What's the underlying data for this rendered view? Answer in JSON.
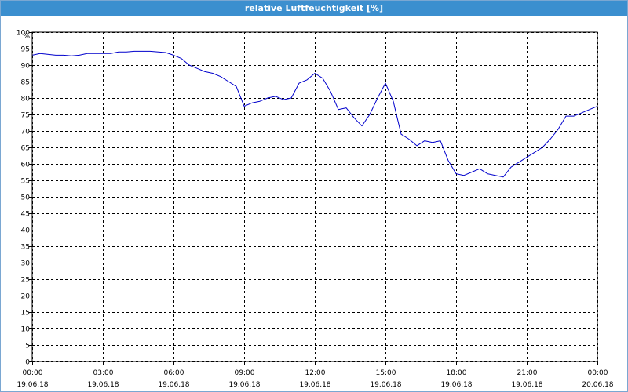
{
  "window": {
    "title": "relative Luftfeuchtigkeit [%]"
  },
  "chart_data": {
    "type": "line",
    "title": "relative Luftfeuchtigkeit [%]",
    "ylabel": "%",
    "xlabel": "",
    "ylim": [
      0,
      100
    ],
    "y_ticks": [
      0,
      5,
      10,
      15,
      20,
      25,
      30,
      35,
      40,
      45,
      50,
      55,
      60,
      65,
      70,
      75,
      80,
      85,
      90,
      95,
      100
    ],
    "xlim": [
      "19.06.18 00:00",
      "20.06.18 00:00"
    ],
    "x_ticks": [
      {
        "time": "00:00",
        "date": "19.06.18"
      },
      {
        "time": "03:00",
        "date": "19.06.18"
      },
      {
        "time": "06:00",
        "date": "19.06.18"
      },
      {
        "time": "09:00",
        "date": "19.06.18"
      },
      {
        "time": "12:00",
        "date": "19.06.18"
      },
      {
        "time": "15:00",
        "date": "19.06.18"
      },
      {
        "time": "18:00",
        "date": "19.06.18"
      },
      {
        "time": "21:00",
        "date": "19.06.18"
      },
      {
        "time": "00:00",
        "date": "20.06.18"
      }
    ],
    "grid": true,
    "line_color": "#0000cc",
    "series": [
      {
        "points": [
          [
            "19.06.18 00:00",
            93
          ],
          [
            "19.06.18 00:20",
            93.5
          ],
          [
            "19.06.18 01:00",
            93
          ],
          [
            "19.06.18 01:20",
            93
          ],
          [
            "19.06.18 01:40",
            92.8
          ],
          [
            "19.06.18 02:00",
            93
          ],
          [
            "19.06.18 02:20",
            93.5
          ],
          [
            "19.06.18 02:40",
            93.5
          ],
          [
            "19.06.18 03:00",
            93.5
          ],
          [
            "19.06.18 03:20",
            93.5
          ],
          [
            "19.06.18 03:40",
            94
          ],
          [
            "19.06.18 04:00",
            94
          ],
          [
            "19.06.18 04:20",
            94.2
          ],
          [
            "19.06.18 05:00",
            94.2
          ],
          [
            "19.06.18 05:40",
            93.8
          ],
          [
            "19.06.18 06:00",
            93
          ],
          [
            "19.06.18 06:20",
            92
          ],
          [
            "19.06.18 06:40",
            90
          ],
          [
            "19.06.18 07:00",
            89
          ],
          [
            "19.06.18 07:20",
            88
          ],
          [
            "19.06.18 07:40",
            87.5
          ],
          [
            "19.06.18 08:00",
            86.5
          ],
          [
            "19.06.18 08:20",
            85
          ],
          [
            "19.06.18 08:40",
            83.5
          ],
          [
            "19.06.18 09:00",
            77.5
          ],
          [
            "19.06.18 09:20",
            78.5
          ],
          [
            "19.06.18 09:40",
            79
          ],
          [
            "19.06.18 10:00",
            80
          ],
          [
            "19.06.18 10:20",
            80.5
          ],
          [
            "19.06.18 10:40",
            79.5
          ],
          [
            "19.06.18 11:00",
            80
          ],
          [
            "19.06.18 11:20",
            84.5
          ],
          [
            "19.06.18 11:40",
            85.5
          ],
          [
            "19.06.18 12:00",
            87.5
          ],
          [
            "19.06.18 12:20",
            86
          ],
          [
            "19.06.18 12:40",
            82
          ],
          [
            "19.06.18 13:00",
            76.5
          ],
          [
            "19.06.18 13:20",
            77
          ],
          [
            "19.06.18 13:40",
            74
          ],
          [
            "19.06.18 14:00",
            71.5
          ],
          [
            "19.06.18 14:20",
            75
          ],
          [
            "19.06.18 14:40",
            80
          ],
          [
            "19.06.18 15:00",
            84.5
          ],
          [
            "19.06.18 15:20",
            79
          ],
          [
            "19.06.18 15:40",
            69
          ],
          [
            "19.06.18 16:00",
            67.5
          ],
          [
            "19.06.18 16:20",
            65.5
          ],
          [
            "19.06.18 16:40",
            67
          ],
          [
            "19.06.18 17:00",
            66.5
          ],
          [
            "19.06.18 17:20",
            67
          ],
          [
            "19.06.18 17:40",
            61
          ],
          [
            "19.06.18 18:00",
            57
          ],
          [
            "19.06.18 18:20",
            56.5
          ],
          [
            "19.06.18 18:40",
            57.5
          ],
          [
            "19.06.18 19:00",
            58.5
          ],
          [
            "19.06.18 19:20",
            57
          ],
          [
            "19.06.18 19:40",
            56.5
          ],
          [
            "19.06.18 20:00",
            56
          ],
          [
            "19.06.18 20:20",
            59
          ],
          [
            "19.06.18 20:40",
            60.5
          ],
          [
            "19.06.18 21:00",
            62
          ],
          [
            "19.06.18 21:20",
            63.5
          ],
          [
            "19.06.18 21:40",
            65
          ],
          [
            "19.06.18 22:00",
            67.5
          ],
          [
            "19.06.18 22:20",
            70.5
          ],
          [
            "19.06.18 22:40",
            74.5
          ],
          [
            "19.06.18 23:00",
            74.5
          ],
          [
            "19.06.18 23:20",
            75.5
          ],
          [
            "19.06.18 23:40",
            76.5
          ],
          [
            "20.06.18 00:00",
            77.5
          ]
        ]
      }
    ]
  }
}
